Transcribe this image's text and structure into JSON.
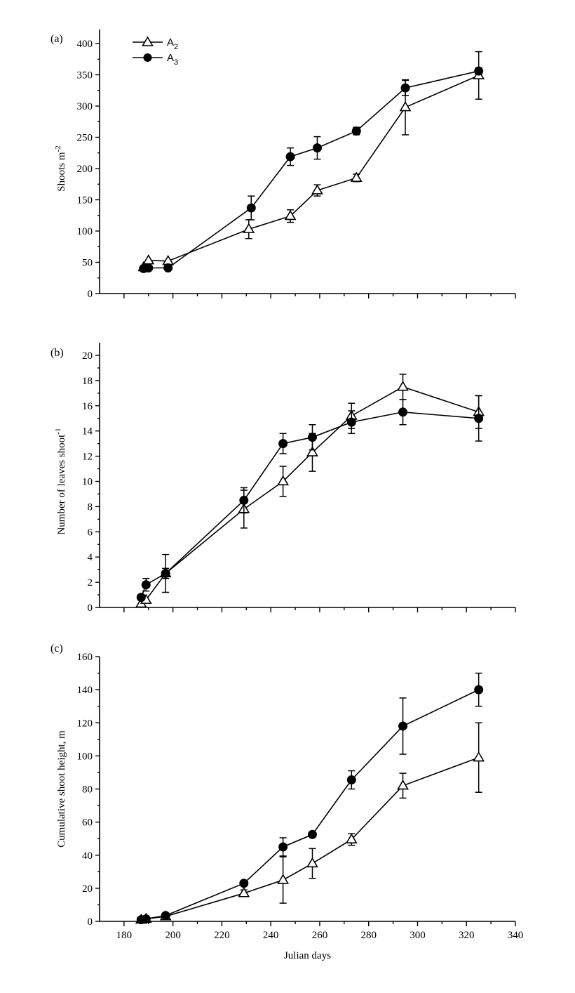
{
  "chart_data": [
    {
      "type": "line",
      "panel_label": "(a)",
      "ylabel": "Shoots m",
      "ylabel_sup": "-2",
      "xlabel": "",
      "xlim": [
        170,
        340
      ],
      "ylim": [
        0,
        400
      ],
      "yticks": [
        0,
        50,
        100,
        150,
        200,
        250,
        300,
        350,
        400
      ],
      "xticks": [
        180,
        200,
        220,
        240,
        260,
        280,
        300,
        320,
        340
      ],
      "show_x_tick_labels": false,
      "grid": false,
      "legend": {
        "placement": "top-left",
        "entries": [
          {
            "series": 0,
            "text": "A",
            "sub": "2"
          },
          {
            "series": 1,
            "text": "A",
            "sub": "3"
          }
        ]
      },
      "series": [
        {
          "name": "A2",
          "marker": "open-triangle",
          "x": [
            188,
            190,
            198,
            231,
            248,
            259,
            275,
            295,
            325
          ],
          "y": [
            42,
            53,
            52,
            103,
            124,
            165,
            185,
            298,
            349
          ],
          "err": [
            0,
            0,
            0,
            15,
            10,
            9,
            6,
            44,
            38
          ]
        },
        {
          "name": "A3",
          "marker": "filled-circle",
          "x": [
            188,
            190,
            198,
            232,
            248,
            259,
            275,
            295,
            325
          ],
          "y": [
            40,
            41,
            41,
            137,
            219,
            233,
            260,
            329,
            356
          ],
          "err": [
            0,
            0,
            0,
            19,
            14,
            18,
            6,
            12,
            5
          ]
        }
      ]
    },
    {
      "type": "line",
      "panel_label": "(b)",
      "ylabel": "Number of leaves shoot",
      "ylabel_sup": "-1",
      "xlabel": "",
      "xlim": [
        170,
        340
      ],
      "ylim": [
        0,
        21
      ],
      "yticks": [
        0,
        2,
        4,
        6,
        8,
        10,
        12,
        14,
        16,
        18,
        20
      ],
      "xticks": [
        180,
        200,
        220,
        240,
        260,
        280,
        300,
        320,
        340
      ],
      "show_x_tick_labels": false,
      "grid": false,
      "series": [
        {
          "name": "A2",
          "marker": "open-triangle",
          "x": [
            187,
            189,
            197,
            229,
            245,
            257,
            273,
            294,
            325
          ],
          "y": [
            0.3,
            0.6,
            2.7,
            7.8,
            10.0,
            12.3,
            15.2,
            17.5,
            15.5
          ],
          "err": [
            0,
            0,
            1.5,
            1.5,
            1.2,
            1.5,
            1.0,
            1.0,
            1.3
          ]
        },
        {
          "name": "A3",
          "marker": "filled-circle",
          "x": [
            187,
            189,
            197,
            229,
            245,
            257,
            273,
            294,
            325
          ],
          "y": [
            0.8,
            1.8,
            2.7,
            8.5,
            13.0,
            13.5,
            14.7,
            15.5,
            15.0
          ],
          "err": [
            0,
            0.5,
            0.4,
            1.0,
            0.8,
            1.0,
            0.9,
            1.0,
            1.8
          ]
        }
      ]
    },
    {
      "type": "line",
      "panel_label": "(c)",
      "ylabel": "Cumulative shoot height, m",
      "ylabel_sup": "",
      "xlabel": "Julian days",
      "xlim": [
        170,
        340
      ],
      "ylim": [
        0,
        160
      ],
      "yticks": [
        0,
        20,
        40,
        60,
        80,
        100,
        120,
        140,
        160
      ],
      "xticks": [
        180,
        200,
        220,
        240,
        260,
        280,
        300,
        320,
        340
      ],
      "show_x_tick_labels": true,
      "grid": false,
      "series": [
        {
          "name": "A2",
          "marker": "open-triangle",
          "x": [
            187,
            189,
            197,
            229,
            245,
            257,
            273,
            294,
            325
          ],
          "y": [
            1,
            1.5,
            3,
            17,
            25,
            35,
            49.5,
            82,
            99
          ],
          "err": [
            0,
            0,
            0,
            2,
            14,
            9,
            3.5,
            7.5,
            21
          ]
        },
        {
          "name": "A3",
          "marker": "filled-circle",
          "x": [
            187,
            189,
            197,
            229,
            245,
            257,
            273,
            294,
            325
          ],
          "y": [
            1,
            1.5,
            3.5,
            23,
            45,
            52.5,
            85.5,
            118,
            140
          ],
          "err": [
            0,
            0,
            0,
            0,
            5.5,
            0,
            5.5,
            17,
            10
          ]
        }
      ]
    }
  ]
}
